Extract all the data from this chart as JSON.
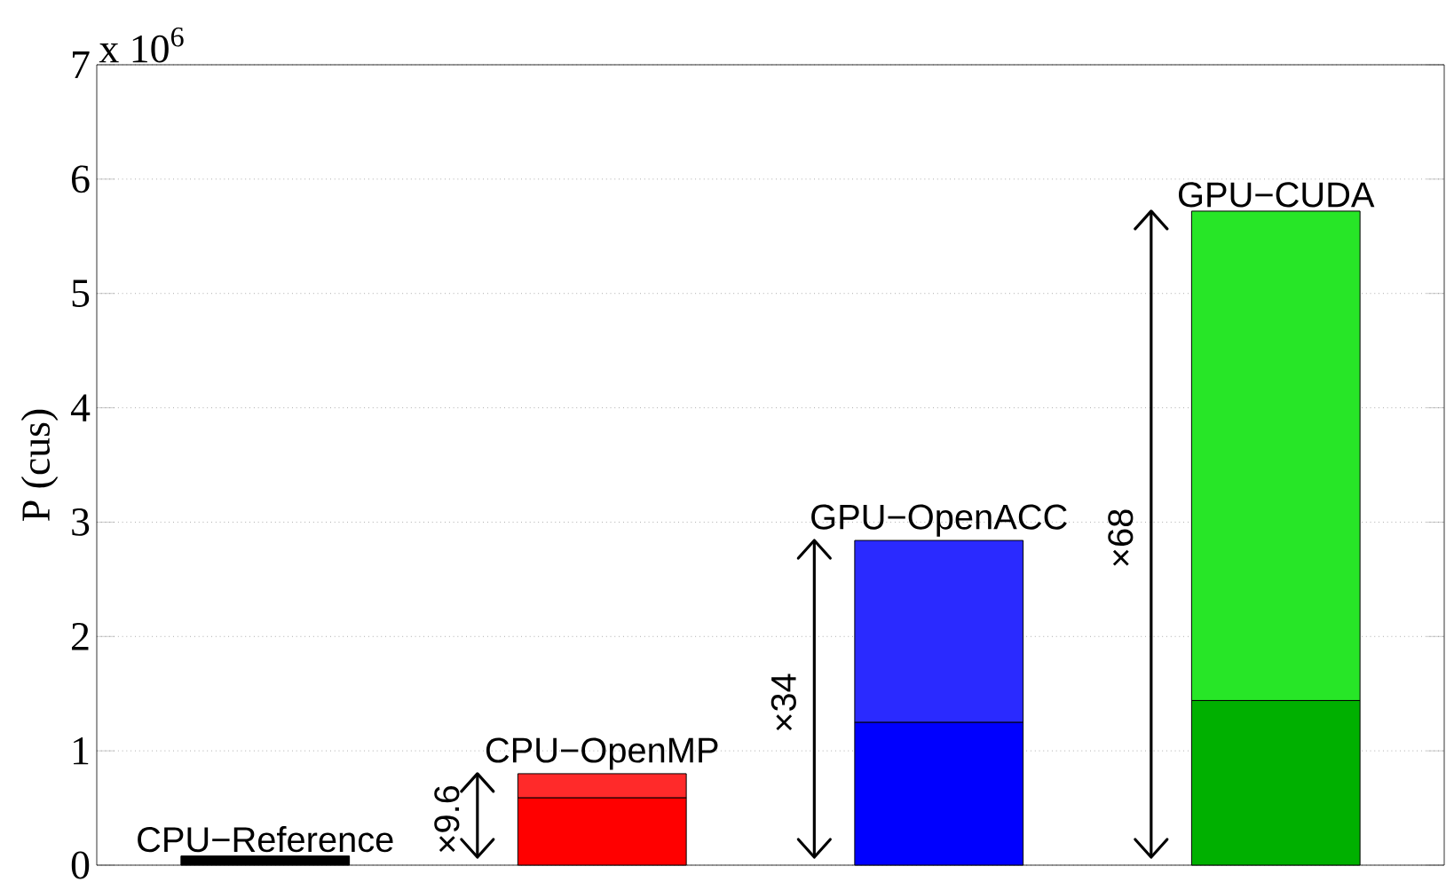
{
  "chart_data": {
    "type": "bar",
    "stacked": true,
    "ylabel": "P (cus)",
    "categories": [
      "CPU−Reference",
      "CPU−OpenMP",
      "GPU−OpenACC",
      "GPU−CUDA"
    ],
    "series": [
      {
        "values": [
          0.08,
          0.59,
          1.25,
          1.44
        ],
        "colors": [
          "#000000",
          "#ff0000",
          "#0000ff",
          "#00b000"
        ]
      },
      {
        "values": [
          null,
          0.21,
          1.59,
          4.28
        ],
        "colors": [
          "#000000",
          "#ff2a2a",
          "#2a2aff",
          "#27e627"
        ]
      }
    ],
    "ylim": [
      0,
      7
    ],
    "yticks": [
      0,
      1,
      2,
      3,
      4,
      5,
      6,
      7
    ],
    "grid": "y",
    "annotations": [
      "x 10$^{6}$",
      "×9.6",
      "×34",
      "×68"
    ]
  }
}
